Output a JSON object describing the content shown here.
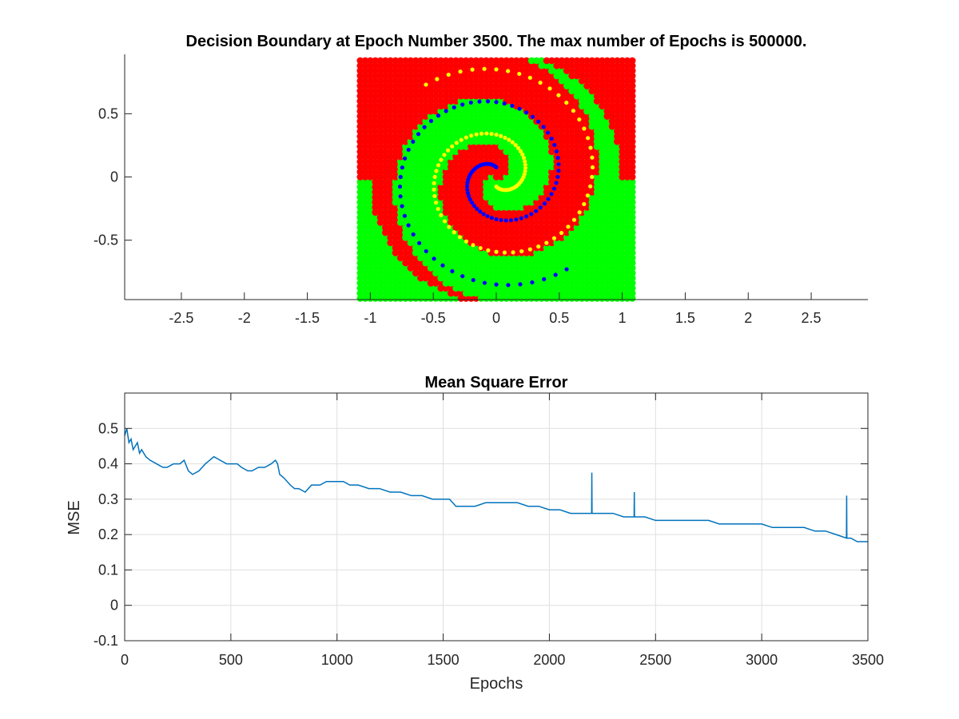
{
  "figure": {
    "background": "#ffffff"
  },
  "chart_data": [
    {
      "type": "scatter",
      "title": "Decision Boundary at Epoch Number 3500. The max number of Epochs is 500000.",
      "xlabel": "",
      "ylabel": "",
      "xlim": [
        -2.95,
        2.95
      ],
      "ylim": [
        -0.97,
        0.97
      ],
      "xticks": [
        -2.5,
        -2,
        -1.5,
        -1,
        -0.5,
        0,
        0.5,
        1,
        1.5,
        2,
        2.5
      ],
      "xtick_labels": [
        "-2.5",
        "-2",
        "-1.5",
        "-1",
        "-0.5",
        "0",
        "0.5",
        "1",
        "1.5",
        "2",
        "2.5"
      ],
      "yticks": [
        -0.5,
        0,
        0.5
      ],
      "ytick_labels": [
        "-0.5",
        "0",
        "0.5"
      ],
      "grid": false,
      "box": "open",
      "background_grid": {
        "x_range": [
          -1.08,
          1.08
        ],
        "y_range": [
          -0.96,
          0.93
        ],
        "step": 0.04,
        "class_colors": {
          "red": "#ff0000",
          "green": "#00ff00"
        },
        "description_of_pattern": "spiral-shaped two-class decision regions"
      },
      "series": [
        {
          "color": "#0000ff",
          "pattern": "spiral",
          "points": 97,
          "max_radius": 0.95,
          "turns": 1.6,
          "phase": 0
        },
        {
          "color": "#ffff00",
          "pattern": "spiral",
          "points": 97,
          "max_radius": 0.95,
          "turns": 1.6,
          "phase": 3.14159
        }
      ]
    },
    {
      "type": "line",
      "title": "Mean Square Error",
      "xlabel": "Epochs",
      "ylabel": "MSE",
      "xlim": [
        0,
        3500
      ],
      "ylim": [
        -0.1,
        0.6
      ],
      "xticks": [
        0,
        500,
        1000,
        1500,
        2000,
        2500,
        3000,
        3500
      ],
      "xtick_labels": [
        "0",
        "500",
        "1000",
        "1500",
        "2000",
        "2500",
        "3000",
        "3500"
      ],
      "yticks": [
        -0.1,
        0,
        0.1,
        0.2,
        0.3,
        0.4,
        0.5
      ],
      "ytick_labels": [
        "-0.1",
        "0",
        "0.1",
        "0.2",
        "0.3",
        "0.4",
        "0.5"
      ],
      "grid": true,
      "box": "closed",
      "line_color": "#0072bd",
      "series": [
        {
          "x": [
            0,
            10,
            20,
            30,
            40,
            50,
            60,
            70,
            80,
            100,
            120,
            150,
            180,
            200,
            230,
            260,
            280,
            300,
            320,
            350,
            380,
            400,
            420,
            450,
            480,
            500,
            530,
            550,
            580,
            600,
            630,
            660,
            690,
            710,
            720,
            730,
            750,
            780,
            800,
            820,
            850,
            880,
            900,
            920,
            950,
            980,
            1000,
            1030,
            1060,
            1100,
            1150,
            1200,
            1250,
            1300,
            1350,
            1400,
            1450,
            1500,
            1530,
            1560,
            1600,
            1650,
            1700,
            1750,
            1800,
            1850,
            1900,
            1950,
            2000,
            2050,
            2100,
            2150,
            2190,
            2199,
            2200,
            2201,
            2210,
            2250,
            2300,
            2350,
            2399,
            2400,
            2401,
            2450,
            2500,
            2550,
            2600,
            2650,
            2700,
            2750,
            2800,
            2850,
            2900,
            2950,
            3000,
            3050,
            3100,
            3150,
            3200,
            3250,
            3300,
            3350,
            3399,
            3400,
            3401,
            3420,
            3450,
            3480,
            3500
          ],
          "y": [
            0.48,
            0.5,
            0.46,
            0.47,
            0.44,
            0.45,
            0.46,
            0.43,
            0.44,
            0.42,
            0.41,
            0.4,
            0.39,
            0.39,
            0.4,
            0.4,
            0.41,
            0.38,
            0.37,
            0.38,
            0.4,
            0.41,
            0.42,
            0.41,
            0.4,
            0.4,
            0.4,
            0.39,
            0.38,
            0.38,
            0.39,
            0.39,
            0.4,
            0.41,
            0.4,
            0.37,
            0.36,
            0.34,
            0.33,
            0.33,
            0.32,
            0.34,
            0.34,
            0.34,
            0.35,
            0.35,
            0.35,
            0.35,
            0.34,
            0.34,
            0.33,
            0.33,
            0.32,
            0.32,
            0.31,
            0.31,
            0.3,
            0.3,
            0.3,
            0.28,
            0.28,
            0.28,
            0.29,
            0.29,
            0.29,
            0.29,
            0.28,
            0.28,
            0.27,
            0.27,
            0.26,
            0.26,
            0.26,
            0.26,
            0.375,
            0.26,
            0.26,
            0.26,
            0.26,
            0.25,
            0.25,
            0.32,
            0.25,
            0.25,
            0.24,
            0.24,
            0.24,
            0.24,
            0.24,
            0.24,
            0.23,
            0.23,
            0.23,
            0.23,
            0.23,
            0.22,
            0.22,
            0.22,
            0.22,
            0.21,
            0.21,
            0.2,
            0.19,
            0.31,
            0.19,
            0.19,
            0.18,
            0.18,
            0.18
          ]
        }
      ]
    }
  ]
}
